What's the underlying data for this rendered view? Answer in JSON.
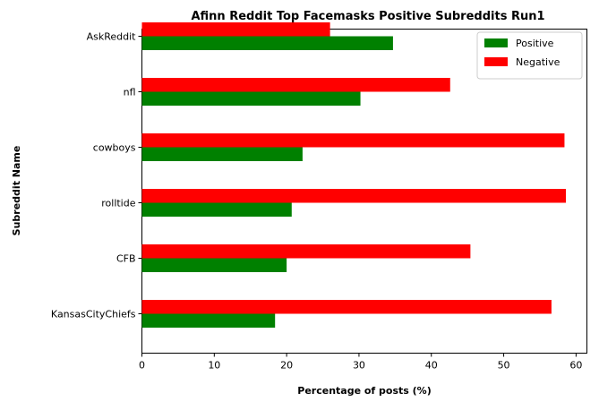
{
  "chart_data": {
    "type": "bar",
    "orientation": "horizontal",
    "title": "Afinn Reddit Top Facemasks Positive Subreddits Run1",
    "xlabel": "Percentage of posts (%)",
    "ylabel": "Subreddit Name",
    "categories": [
      "KansasCityChiefs",
      "CFB",
      "rolltide",
      "cowboys",
      "nfl",
      "AskReddit"
    ],
    "series": [
      {
        "name": "Positive",
        "color": "#008000",
        "values": [
          18.4,
          20.0,
          20.7,
          22.2,
          30.2,
          34.7
        ]
      },
      {
        "name": "Negative",
        "color": "#ff0000",
        "values": [
          56.6,
          45.4,
          58.6,
          58.4,
          42.6,
          26.0
        ]
      }
    ],
    "xlim": [
      0,
      61.5
    ],
    "xticks": [
      0,
      10,
      20,
      30,
      40,
      50,
      60
    ],
    "grid": false,
    "legend_position": "top-right"
  }
}
